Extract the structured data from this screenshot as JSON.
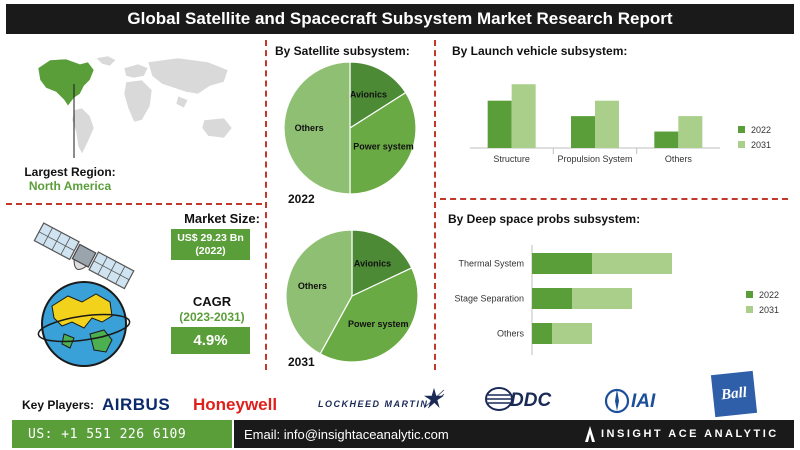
{
  "title": "Global Satellite and Spacecraft Subsystem Market Research Report",
  "region": {
    "label": "Largest Region:",
    "value": "North America"
  },
  "market_size": {
    "label": "Market Size:",
    "value": "US$ 29.23 Bn",
    "year": "(2022)"
  },
  "cagr": {
    "label": "CAGR",
    "period": "(2023-2031)",
    "value": "4.9%"
  },
  "key_players": {
    "label": "Key Players:",
    "logos": [
      "AIRBUS",
      "Honeywell",
      "LOCKHEED MARTIN",
      "DDC",
      "IAI",
      "Ball"
    ]
  },
  "footer": {
    "phone": "US: +1 551 226 6109",
    "email": "Email: info@insightaceanalytic.com",
    "brand": "INSIGHT ACE ANALYTIC"
  },
  "colors": {
    "dark_green": "#5a9e3a",
    "light_green": "#a9cf8b",
    "pie_dark": "#4d8a36",
    "pie_mid": "#6aaa45",
    "pie_light": "#8fbf72"
  },
  "chart_data": [
    {
      "type": "pie",
      "title": "By Satellite subsystem:",
      "caption": "2022",
      "labels": [
        "Avionics",
        "Power system",
        "Others"
      ],
      "values": [
        16,
        34,
        50
      ]
    },
    {
      "type": "pie",
      "caption": "2031",
      "labels": [
        "Avionics",
        "Power system",
        "Others"
      ],
      "values": [
        18,
        40,
        42
      ]
    },
    {
      "type": "bar",
      "title": "By Launch vehicle subsystem:",
      "categories": [
        "Structure",
        "Propulsion System",
        "Others"
      ],
      "series": [
        {
          "name": "2022",
          "values": [
            46,
            31,
            16
          ]
        },
        {
          "name": "2031",
          "values": [
            62,
            46,
            31
          ]
        }
      ],
      "ylim": [
        0,
        70
      ],
      "legend": "right",
      "grid": false
    },
    {
      "type": "bar",
      "orientation": "horizontal",
      "stacked": true,
      "title": "By Deep space probs subsystem:",
      "categories": [
        "Thermal System",
        "Stage Separation",
        "Others"
      ],
      "series": [
        {
          "name": "2022",
          "values": [
            30,
            20,
            10
          ]
        },
        {
          "name": "2031",
          "values": [
            40,
            30,
            20
          ]
        }
      ],
      "xlim": [
        0,
        100
      ],
      "legend": "right",
      "grid": false
    }
  ]
}
